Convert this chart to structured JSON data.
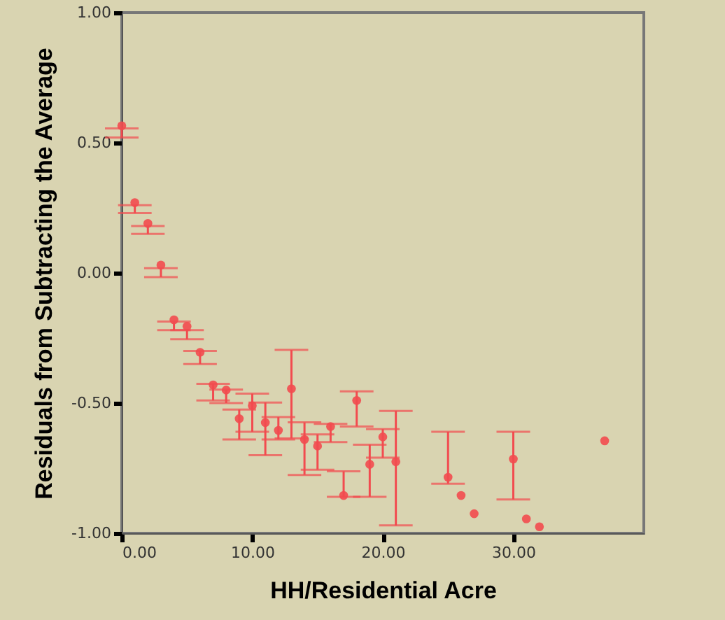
{
  "chart_data": {
    "type": "scatter",
    "xlabel": "HH/Residential Acre",
    "ylabel": "Residuals from Subtracting the Average",
    "xlim": [
      0,
      40
    ],
    "ylim": [
      -1,
      1
    ],
    "xticks": [
      {
        "value": 0,
        "label": "0.00"
      },
      {
        "value": 10,
        "label": "10.00"
      },
      {
        "value": 20,
        "label": "20.00"
      },
      {
        "value": 30,
        "label": "30.00"
      }
    ],
    "yticks": [
      {
        "value": -1,
        "label": "-1.00"
      },
      {
        "value": -0.5,
        "label": "-0.50"
      },
      {
        "value": 0,
        "label": "0.00"
      },
      {
        "value": 0.5,
        "label": "0.50"
      },
      {
        "value": 1,
        "label": "1.00"
      }
    ],
    "marker": "circle",
    "color": "#f24b4f",
    "x": [
      0,
      1,
      2,
      3,
      4,
      5,
      6,
      7,
      8,
      9,
      10,
      11,
      12,
      13,
      14,
      15,
      16,
      17,
      18,
      19,
      20,
      21,
      25,
      26,
      27,
      30,
      31,
      32,
      37
    ],
    "values": [
      0.565,
      0.27,
      0.19,
      0.03,
      -0.18,
      -0.205,
      -0.305,
      -0.43,
      -0.45,
      -0.56,
      -0.51,
      -0.575,
      -0.605,
      -0.445,
      -0.64,
      -0.665,
      -0.59,
      -0.855,
      -0.49,
      -0.735,
      -0.63,
      -0.725,
      -0.785,
      -0.855,
      -0.925,
      -0.715,
      -0.945,
      -0.975,
      -0.645
    ],
    "errors": [
      [
        0.52,
        0.555
      ],
      [
        0.23,
        0.26
      ],
      [
        0.15,
        0.18
      ],
      [
        -0.016,
        0.018
      ],
      [
        -0.22,
        -0.187
      ],
      [
        -0.255,
        -0.22
      ],
      [
        -0.35,
        -0.3
      ],
      [
        -0.49,
        -0.426
      ],
      [
        -0.5,
        -0.448
      ],
      [
        -0.64,
        -0.525
      ],
      [
        -0.61,
        -0.464
      ],
      [
        -0.7,
        -0.498
      ],
      [
        -0.64,
        -0.554
      ],
      [
        -0.636,
        -0.296
      ],
      [
        -0.776,
        -0.574
      ],
      [
        -0.756,
        -0.62
      ],
      [
        -0.65,
        -0.58
      ],
      [
        -0.86,
        -0.762
      ],
      [
        -0.59,
        -0.455
      ],
      [
        -0.86,
        -0.66
      ],
      [
        -0.71,
        -0.6
      ],
      [
        -0.97,
        -0.53
      ],
      [
        -0.81,
        -0.61
      ],
      null,
      null,
      [
        -0.87,
        -0.61
      ],
      null,
      null,
      null
    ]
  }
}
